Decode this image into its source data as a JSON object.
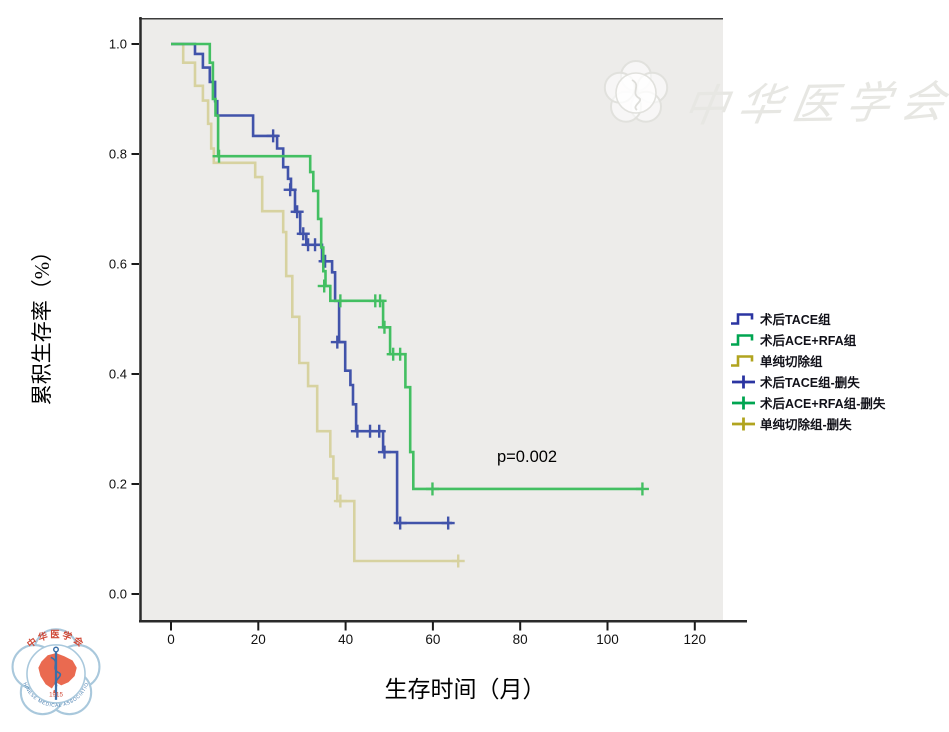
{
  "watermark": {
    "text": "中华医学会"
  },
  "annotation": {
    "p_value": "p=0.002"
  },
  "axes": {
    "x": {
      "title": "生存时间（月）",
      "ticks": [
        0,
        20,
        40,
        60,
        80,
        100,
        120
      ]
    },
    "y": {
      "title": "累积生存率（%）",
      "ticks": [
        "0.0",
        "0.2",
        "0.4",
        "0.6",
        "0.8",
        "1.0"
      ]
    }
  },
  "legend": {
    "items": [
      {
        "label": "术后TACE组",
        "type": "step",
        "color": "#2b35a2"
      },
      {
        "label": "术后ACE+RFA组",
        "type": "step",
        "color": "#00a551"
      },
      {
        "label": "单纯切除组",
        "type": "step",
        "color": "#b1a41f"
      },
      {
        "label": "术后TACE组-删失",
        "type": "plus",
        "color": "#2b35a2"
      },
      {
        "label": "术后ACE+RFA组-删失",
        "type": "plus",
        "color": "#00a551"
      },
      {
        "label": "单纯切除组-删失",
        "type": "plus",
        "color": "#b1a41f"
      }
    ]
  },
  "chart_data": {
    "type": "line",
    "subtype": "kaplan_meier_step",
    "title": "",
    "xlabel": "生存时间（月）",
    "ylabel": "累积生存率（%）",
    "xlim": [
      0,
      126
    ],
    "ylim": [
      0,
      1.0
    ],
    "grid": false,
    "legend_position": "right",
    "annotation": "p=0.002",
    "plot_background": "#edecea",
    "axis_color": "#2a2a2a",
    "draw_order": [
      2,
      0,
      1
    ],
    "series": [
      {
        "name": "术后TACE组",
        "color": "#4153aa",
        "steps": [
          [
            0,
            1.0
          ],
          [
            5.5,
            0.982
          ],
          [
            7.3,
            0.957
          ],
          [
            8.9,
            0.931
          ],
          [
            10.1,
            0.896
          ],
          [
            10.6,
            0.87
          ],
          [
            18.8,
            0.833
          ],
          [
            24.3,
            0.81
          ],
          [
            25.7,
            0.776
          ],
          [
            26.8,
            0.755
          ],
          [
            27.5,
            0.735
          ],
          [
            28.4,
            0.695
          ],
          [
            29.6,
            0.655
          ],
          [
            31.0,
            0.635
          ],
          [
            34.6,
            0.605
          ],
          [
            36.9,
            0.585
          ],
          [
            37.6,
            0.533
          ],
          [
            38.5,
            0.458
          ],
          [
            39.9,
            0.406
          ],
          [
            41.1,
            0.38
          ],
          [
            41.7,
            0.345
          ],
          [
            42.4,
            0.296
          ],
          [
            48.6,
            0.258
          ],
          [
            51.8,
            0.129
          ]
        ],
        "end": 64.4,
        "censors": [
          [
            23.4,
            0.833
          ],
          [
            27.3,
            0.735
          ],
          [
            28.9,
            0.695
          ],
          [
            30.3,
            0.655
          ],
          [
            31.4,
            0.635
          ],
          [
            33.0,
            0.635
          ],
          [
            35.3,
            0.605
          ],
          [
            38.1,
            0.458
          ],
          [
            42.7,
            0.296
          ],
          [
            45.6,
            0.296
          ],
          [
            47.7,
            0.296
          ],
          [
            48.9,
            0.258
          ],
          [
            52.5,
            0.129
          ],
          [
            63.5,
            0.129
          ]
        ]
      },
      {
        "name": "术后ACE+RFA组",
        "color": "#43bf62",
        "steps": [
          [
            0,
            1.0
          ],
          [
            8.9,
            0.966
          ],
          [
            9.6,
            0.9
          ],
          [
            10.2,
            0.87
          ],
          [
            10.8,
            0.796
          ],
          [
            31.9,
            0.767
          ],
          [
            32.6,
            0.733
          ],
          [
            33.7,
            0.682
          ],
          [
            34.4,
            0.63
          ],
          [
            34.9,
            0.587
          ],
          [
            35.4,
            0.56
          ],
          [
            36.5,
            0.533
          ],
          [
            48.6,
            0.485
          ],
          [
            50.2,
            0.436
          ],
          [
            53.7,
            0.376
          ],
          [
            54.8,
            0.258
          ],
          [
            55.5,
            0.191
          ]
        ],
        "end": 108,
        "censors": [
          [
            11.0,
            0.796
          ],
          [
            35.1,
            0.56
          ],
          [
            38.8,
            0.533
          ],
          [
            46.8,
            0.533
          ],
          [
            47.9,
            0.533
          ],
          [
            48.9,
            0.485
          ],
          [
            50.9,
            0.436
          ],
          [
            52.5,
            0.436
          ],
          [
            59.9,
            0.191
          ],
          [
            108,
            0.191
          ]
        ]
      },
      {
        "name": "单纯切除组",
        "color": "#d7d2a0",
        "steps": [
          [
            0,
            1.0
          ],
          [
            2.8,
            0.966
          ],
          [
            5.5,
            0.924
          ],
          [
            7.3,
            0.897
          ],
          [
            8.5,
            0.855
          ],
          [
            9.2,
            0.81
          ],
          [
            9.8,
            0.784
          ],
          [
            19.3,
            0.758
          ],
          [
            20.9,
            0.696
          ],
          [
            25.7,
            0.658
          ],
          [
            26.4,
            0.578
          ],
          [
            27.8,
            0.504
          ],
          [
            29.4,
            0.42
          ],
          [
            31.4,
            0.378
          ],
          [
            33.5,
            0.296
          ],
          [
            36.5,
            0.25
          ],
          [
            37.2,
            0.21
          ],
          [
            38.1,
            0.169
          ],
          [
            42.0,
            0.06
          ]
        ],
        "end": 65.8,
        "censors": [
          [
            38.8,
            0.169
          ],
          [
            65.8,
            0.06
          ]
        ]
      }
    ]
  },
  "logo": {
    "org_cn": "中华医学会",
    "org_en": "CHINESE MEDICAL ASSOCIATION",
    "year": "1915"
  }
}
